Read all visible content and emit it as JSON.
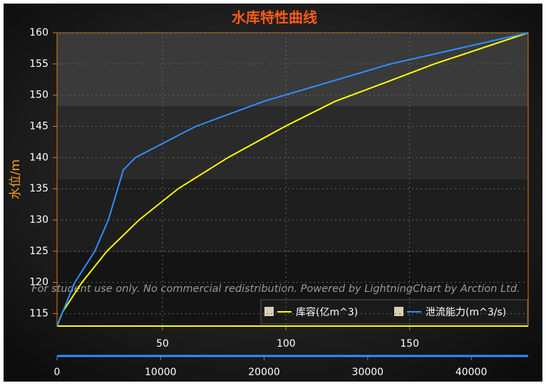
{
  "chart_data": {
    "type": "line",
    "title": "水库特性曲线",
    "ylabel": "水位/m",
    "watermark": "For student use only. No commercial redistribution. Powered by LightningChart by Arction Ltd.",
    "ylim": [
      113,
      160
    ],
    "yticks": [
      115,
      120,
      125,
      130,
      135,
      140,
      145,
      150,
      155,
      160
    ],
    "xlim": [
      7.3,
      198
    ],
    "xticks": [
      50,
      100,
      150
    ],
    "x2lim": [
      0,
      45500
    ],
    "x2ticks": [
      0,
      10000,
      20000,
      30000,
      40000
    ],
    "grid": true,
    "legend": "bottom-right",
    "series": [
      {
        "name": "库容(亿m^3)",
        "color": "#ffff00",
        "axis": "x",
        "x": [
          7.3,
          9.6,
          17.4,
          27.5,
          40.5,
          56.3,
          76.5,
          99.6,
          119.8,
          140,
          160,
          198
        ],
        "values": [
          113,
          115.3,
          120,
          125,
          130,
          135,
          140,
          145,
          149,
          152,
          155,
          160
        ]
      },
      {
        "name": "泄流能力(m^3/s)",
        "color": "#2f8fff",
        "axis": "x2",
        "x": [
          0,
          480,
          1720,
          3650,
          4950,
          6400,
          7570,
          13400,
          19950,
          32200,
          45500
        ],
        "values": [
          113,
          115,
          120,
          125,
          130,
          138,
          140,
          145,
          149,
          155,
          160
        ]
      }
    ]
  }
}
